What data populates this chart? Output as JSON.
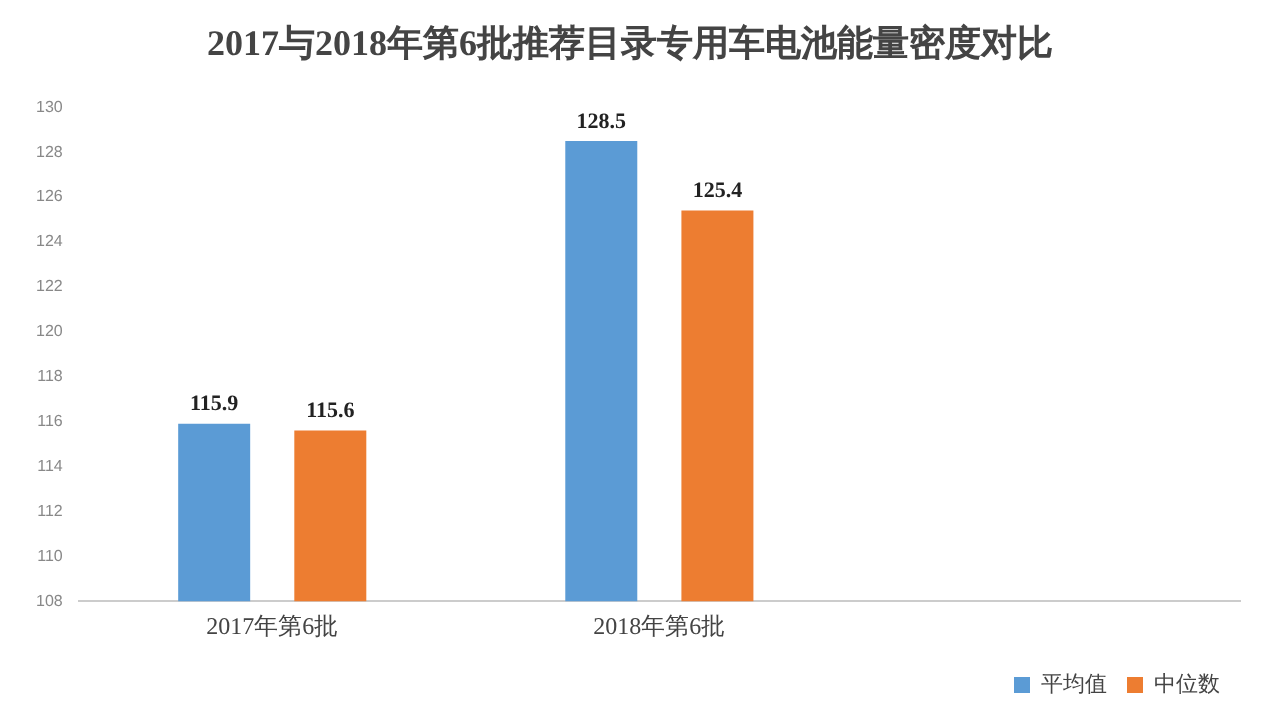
{
  "chart_data": {
    "type": "bar",
    "title": "2017与2018年第6批推荐目录专用车电池能量密度对比",
    "categories": [
      "2017年第6批",
      "2018年第6批",
      null
    ],
    "series": [
      {
        "name": "平均值",
        "color": "#5b9bd5",
        "values": [
          115.9,
          128.5,
          null
        ]
      },
      {
        "name": "中位数",
        "color": "#ed7d31",
        "values": [
          115.6,
          125.4,
          null
        ]
      }
    ],
    "ylim": [
      108,
      130
    ],
    "yticks": [
      108,
      110,
      112,
      114,
      116,
      118,
      120,
      122,
      124,
      126,
      128,
      130
    ],
    "grid": false,
    "legend": "bottom right",
    "data_labels": true
  }
}
